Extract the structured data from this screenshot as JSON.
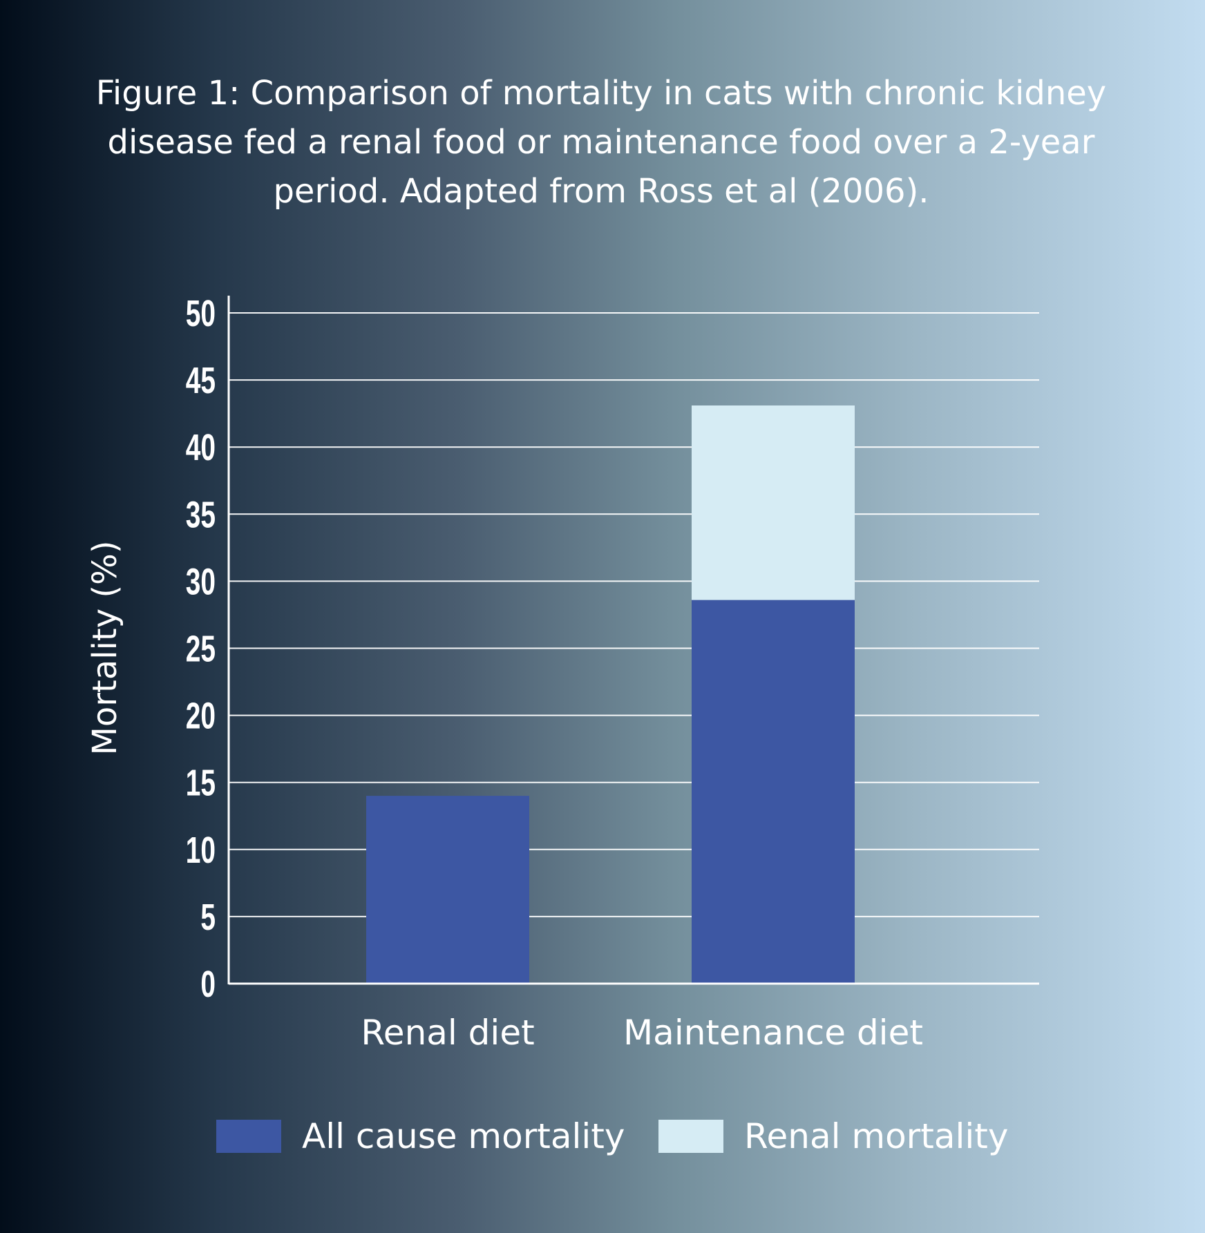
{
  "title": "Figure 1: Comparison of mortality in cats with chronic kidney disease fed a renal food or maintenance food over a 2-year period. Adapted from Ross et al (2006).",
  "chart_data": {
    "type": "bar",
    "stacked": true,
    "title": "Figure 1: Comparison of mortality in cats with chronic kidney disease fed a renal food or maintenance food over a 2-year period. Adapted from Ross et al (2006).",
    "xlabel": "",
    "ylabel": "Mortality (%)",
    "ylim": [
      0,
      50
    ],
    "yticks": [
      0,
      5,
      10,
      15,
      20,
      25,
      30,
      35,
      40,
      45,
      50
    ],
    "grid": true,
    "legend": "bottom",
    "categories": [
      "Renal diet",
      "Maintenance diet"
    ],
    "series": [
      {
        "name": "All cause mortality",
        "values": [
          14,
          28.6
        ],
        "color": "#3d57a3"
      },
      {
        "name": "Renal mortality",
        "values": [
          0,
          14.5
        ],
        "color": "#d6ecf4"
      }
    ]
  },
  "colors": {
    "axis": "#ffffff",
    "gridline": "#ffffff",
    "text": "#ffffff"
  }
}
